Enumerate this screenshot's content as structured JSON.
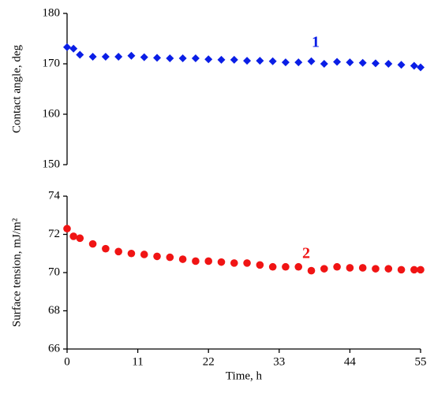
{
  "chart_data": [
    {
      "type": "scatter",
      "ylabel": "Contact angle, deg",
      "annotation": "1",
      "color": "#0a1ee6",
      "marker": "diamond",
      "x": [
        0,
        1,
        2,
        4,
        6,
        8,
        10,
        12,
        14,
        16,
        18,
        20,
        22,
        24,
        26,
        28,
        30,
        32,
        34,
        36,
        38,
        40,
        42,
        44,
        46,
        48,
        50,
        52,
        54,
        55
      ],
      "values": [
        173.3,
        173,
        171.8,
        171.4,
        171.4,
        171.4,
        171.6,
        171.3,
        171.2,
        171.1,
        171.1,
        171.1,
        170.9,
        170.8,
        170.8,
        170.6,
        170.6,
        170.5,
        170.3,
        170.3,
        170.5,
        170,
        170.4,
        170.3,
        170.2,
        170.1,
        170,
        169.8,
        169.6,
        169.3
      ],
      "xlim": [
        0,
        55
      ],
      "ylim": [
        150,
        180
      ],
      "yticks": [
        150,
        160,
        170,
        180
      ]
    },
    {
      "type": "scatter",
      "ylabel": "Surface tension, mJ/m²",
      "xlabel": "Time, h",
      "annotation": "2",
      "color": "#f01414",
      "marker": "circle",
      "x": [
        0,
        1,
        2,
        4,
        6,
        8,
        10,
        12,
        14,
        16,
        18,
        20,
        22,
        24,
        26,
        28,
        30,
        32,
        34,
        36,
        38,
        40,
        42,
        44,
        46,
        48,
        50,
        52,
        54,
        55
      ],
      "values": [
        72.3,
        71.9,
        71.8,
        71.5,
        71.25,
        71.1,
        71,
        70.95,
        70.85,
        70.8,
        70.7,
        70.6,
        70.6,
        70.55,
        70.5,
        70.5,
        70.4,
        70.3,
        70.3,
        70.3,
        70.1,
        70.2,
        70.3,
        70.25,
        70.25,
        70.2,
        70.2,
        70.15,
        70.15,
        70.15
      ],
      "xlim": [
        0,
        55
      ],
      "xticks": [
        0,
        11,
        22,
        33,
        44,
        55
      ],
      "ylim": [
        66,
        74
      ],
      "yticks": [
        66,
        68,
        70,
        72,
        74
      ]
    }
  ]
}
